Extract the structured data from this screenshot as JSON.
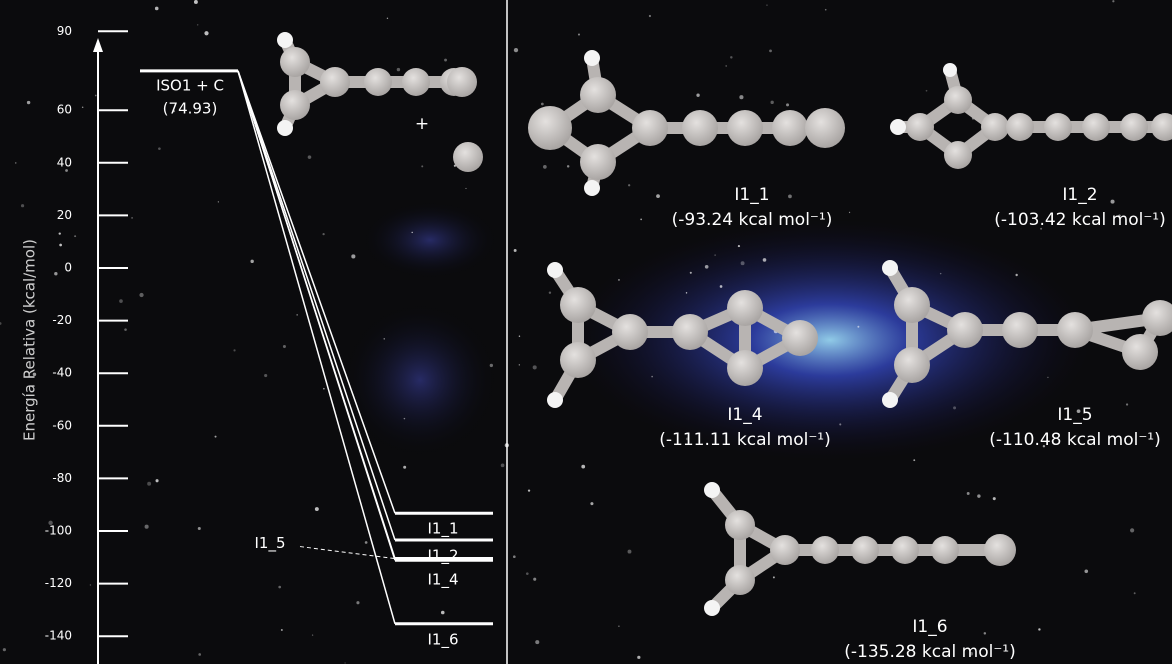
{
  "chart_data": {
    "type": "energy-levels",
    "y_label": "Energía Relativa (kcal/mol)",
    "annotation": "+",
    "categories": [
      "ISO1 + C",
      "I1_1",
      "I1_2",
      "I1_4",
      "I1_5",
      "I1_6"
    ],
    "values": [
      74.93,
      -93.24,
      -103.42,
      -111.11,
      -110.48,
      -135.28
    ],
    "value_labels": [
      "(74.93)",
      "(-93.24 kcal mol⁻¹)",
      "(-103.42 kcal mol⁻¹)",
      "(-111.11 kcal mol⁻¹)",
      "(-110.48 kcal mol⁻¹)",
      "(-135.28 kcal mol⁻¹)"
    ],
    "color": "#ffffff",
    "ylim": [
      -150,
      100
    ],
    "yticks": [
      90,
      60,
      40,
      20,
      0,
      -20,
      -40,
      -60,
      -80,
      -100,
      -120,
      -140
    ]
  }
}
